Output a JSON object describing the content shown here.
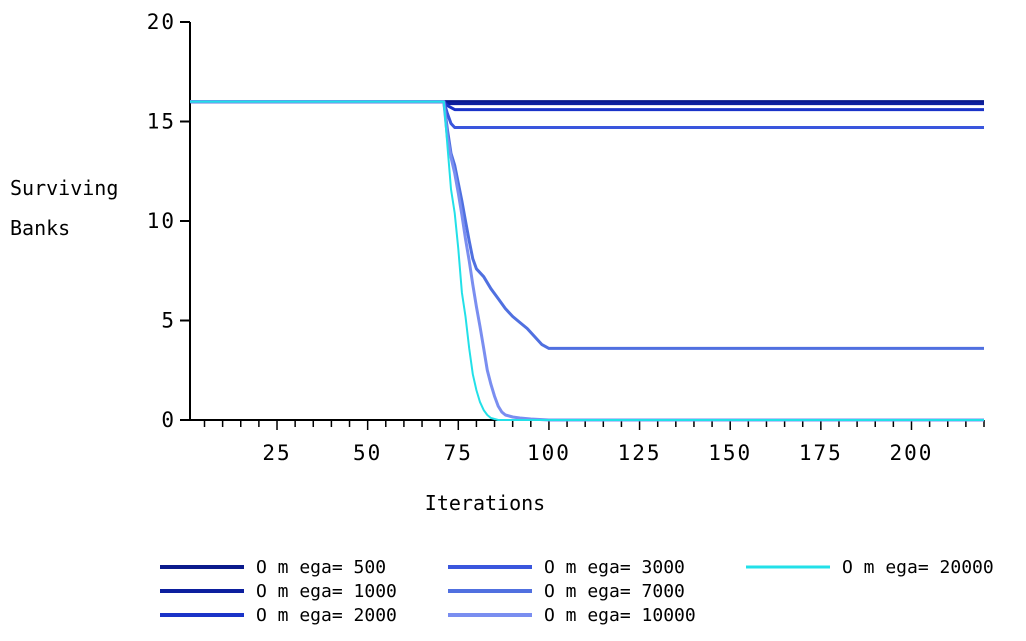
{
  "chart_data": {
    "type": "line",
    "title": "",
    "xlabel": "Iterations",
    "ylabel_lines": [
      "Surviving",
      "Banks"
    ],
    "xlim": [
      1,
      220
    ],
    "ylim": [
      0,
      20
    ],
    "xticks": [
      25,
      50,
      75,
      100,
      125,
      150,
      175,
      200
    ],
    "yticks": [
      0,
      5,
      10,
      15,
      20
    ],
    "grid": false,
    "legend_position": "bottom",
    "series": [
      {
        "name": "Omega= 500",
        "label": "O m ega= 500",
        "color": "#0a1a8c",
        "width": 3,
        "points": [
          [
            1,
            16
          ],
          [
            220,
            16
          ]
        ]
      },
      {
        "name": "Omega= 1000",
        "label": "O m ega= 1000",
        "color": "#0c1f9e",
        "width": 3,
        "points": [
          [
            1,
            16
          ],
          [
            71,
            16
          ],
          [
            72,
            15.9
          ],
          [
            220,
            15.9
          ]
        ]
      },
      {
        "name": "Omega= 2000",
        "label": "O m ega= 2000",
        "color": "#1a33c8",
        "width": 3,
        "points": [
          [
            1,
            16
          ],
          [
            71,
            16
          ],
          [
            72,
            15.8
          ],
          [
            73,
            15.7
          ],
          [
            74,
            15.6
          ],
          [
            220,
            15.6
          ]
        ]
      },
      {
        "name": "Omega= 3000",
        "label": "O m ega= 3000",
        "color": "#3a56dd",
        "width": 3,
        "points": [
          [
            1,
            16
          ],
          [
            71,
            16
          ],
          [
            72,
            15.4
          ],
          [
            73,
            14.9
          ],
          [
            74,
            14.7
          ],
          [
            220,
            14.7
          ]
        ]
      },
      {
        "name": "Omega= 7000",
        "label": "O m ega= 7000",
        "color": "#5070e0",
        "width": 3,
        "points": [
          [
            1,
            16
          ],
          [
            71,
            16
          ],
          [
            72,
            14.6
          ],
          [
            73,
            13.4
          ],
          [
            74,
            12.8
          ],
          [
            75,
            11.9
          ],
          [
            76,
            11.0
          ],
          [
            77,
            10.0
          ],
          [
            78,
            9.0
          ],
          [
            79,
            8.1
          ],
          [
            80,
            7.6
          ],
          [
            82,
            7.2
          ],
          [
            84,
            6.6
          ],
          [
            86,
            6.1
          ],
          [
            88,
            5.6
          ],
          [
            90,
            5.2
          ],
          [
            92,
            4.9
          ],
          [
            94,
            4.6
          ],
          [
            96,
            4.2
          ],
          [
            98,
            3.8
          ],
          [
            100,
            3.6
          ],
          [
            220,
            3.6
          ]
        ]
      },
      {
        "name": "Omega= 10000",
        "label": "O m ega= 10000",
        "color": "#7a8ef0",
        "width": 3,
        "points": [
          [
            1,
            16
          ],
          [
            71,
            16
          ],
          [
            72,
            14.2
          ],
          [
            73,
            13.2
          ],
          [
            74,
            12.4
          ],
          [
            75,
            11.4
          ],
          [
            76,
            10.3
          ],
          [
            77,
            9.1
          ],
          [
            78,
            8.0
          ],
          [
            79,
            6.8
          ],
          [
            80,
            5.7
          ],
          [
            81,
            4.7
          ],
          [
            82,
            3.6
          ],
          [
            83,
            2.5
          ],
          [
            84,
            1.8
          ],
          [
            85,
            1.2
          ],
          [
            86,
            0.7
          ],
          [
            87,
            0.4
          ],
          [
            88,
            0.25
          ],
          [
            90,
            0.15
          ],
          [
            92,
            0.1
          ],
          [
            95,
            0.05
          ],
          [
            100,
            0
          ],
          [
            220,
            0
          ]
        ]
      },
      {
        "name": "Omega= 20000",
        "label": "O m ega= 20000",
        "color": "#22e0e8",
        "width": 2,
        "points": [
          [
            1,
            16
          ],
          [
            71,
            16
          ],
          [
            72,
            13.8
          ],
          [
            73,
            11.6
          ],
          [
            74,
            10.4
          ],
          [
            75,
            8.6
          ],
          [
            76,
            6.4
          ],
          [
            77,
            5.2
          ],
          [
            78,
            3.6
          ],
          [
            79,
            2.3
          ],
          [
            80,
            1.5
          ],
          [
            81,
            0.9
          ],
          [
            82,
            0.5
          ],
          [
            83,
            0.25
          ],
          [
            84,
            0.1
          ],
          [
            86,
            0
          ],
          [
            220,
            0
          ]
        ]
      }
    ]
  }
}
